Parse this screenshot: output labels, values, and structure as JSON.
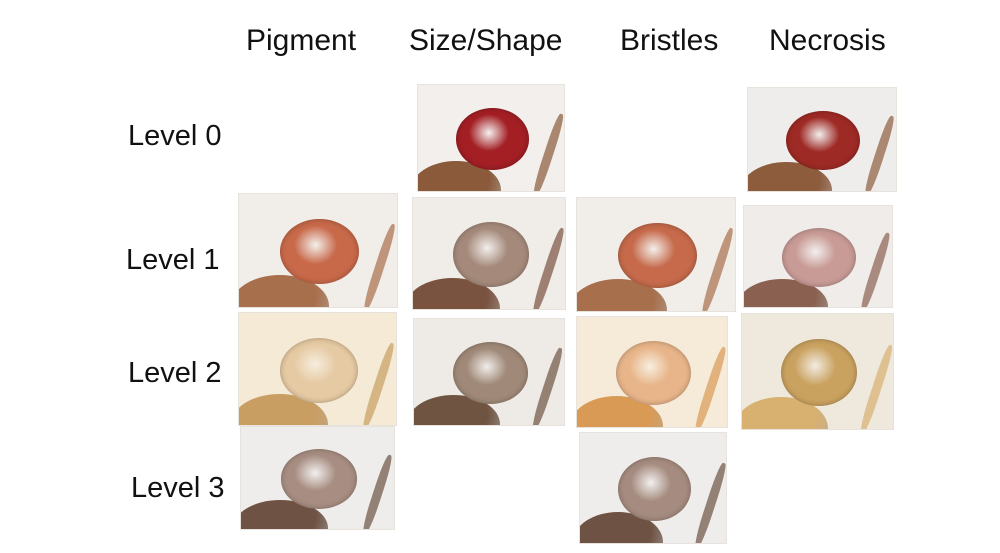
{
  "columns": [
    "Pigment",
    "Size/Shape",
    "Bristles",
    "Necrosis"
  ],
  "rows": [
    "Level 0",
    "Level 1",
    "Level 2",
    "Level 3"
  ],
  "photos": {
    "l0_size": {
      "bg": "#f2efec",
      "eye": "#a31f24",
      "body": "#8a5a3a"
    },
    "l0_necrosis": {
      "bg": "#efedeb",
      "eye": "#9e2a25",
      "body": "#8d5c3d"
    },
    "l1_pigment": {
      "bg": "#f1ede8",
      "eye": "#c8694a",
      "body": "#a86f4d"
    },
    "l1_size": {
      "bg": "#f0ece8",
      "eye": "#a58a7b",
      "body": "#7a5340"
    },
    "l1_bristles": {
      "bg": "#f1ede8",
      "eye": "#c66a4b",
      "body": "#a86f4d"
    },
    "l1_necrosis": {
      "bg": "#f0ecea",
      "eye": "#c99b96",
      "body": "#8a6150"
    },
    "l2_pigment": {
      "bg": "#f4ead6",
      "eye": "#e6caa3",
      "body": "#c99e63"
    },
    "l2_size": {
      "bg": "#eeeae6",
      "eye": "#a08978",
      "body": "#6f5442"
    },
    "l2_bristles": {
      "bg": "#f6ebd8",
      "eye": "#e8b58a",
      "body": "#d89a55"
    },
    "l2_necrosis": {
      "bg": "#efe8dc",
      "eye": "#caa260",
      "body": "#d8b070"
    },
    "l3_pigment": {
      "bg": "#efedeb",
      "eye": "#a88e82",
      "body": "#6e5244"
    },
    "l3_bristles": {
      "bg": "#efedeb",
      "eye": "#a68c80",
      "body": "#6e5244"
    }
  }
}
